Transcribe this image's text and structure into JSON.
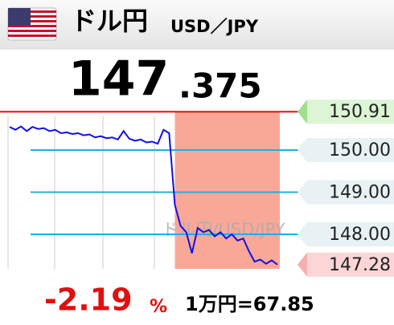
{
  "header": {
    "title": "ドル円",
    "pair": "USD／JPY"
  },
  "price": {
    "integer": "147",
    "decimal": ".375"
  },
  "change": {
    "value": "-2.19",
    "unit": "%"
  },
  "conversion": "1万円=67.85",
  "chart_data": {
    "type": "line",
    "watermark": "ドル円/USD/JPY",
    "series": [
      {
        "color": "#1010e0",
        "values": [
          150.55,
          150.48,
          150.56,
          150.45,
          150.55,
          150.5,
          150.52,
          150.45,
          150.48,
          150.4,
          150.42,
          150.38,
          150.4,
          150.35,
          150.37,
          150.3,
          150.33,
          150.28,
          150.3,
          150.25,
          150.45,
          150.27,
          150.22,
          150.25,
          150.18,
          150.2,
          150.15,
          150.48,
          150.4,
          148.7,
          148.2,
          148.05,
          147.55,
          148.15,
          148.05,
          148.1,
          147.95,
          148.05,
          147.9,
          148.0,
          147.85,
          147.9,
          147.6,
          147.35,
          147.4,
          147.3,
          147.38,
          147.28
        ]
      }
    ],
    "ylim": [
      147.18,
      150.99
    ],
    "yticks": [
      {
        "value": 148,
        "label": "148.00"
      },
      {
        "value": 149,
        "label": "149.00"
      },
      {
        "value": 150,
        "label": "150.00"
      }
    ],
    "reference": 150.91,
    "reference_color": "#e01010",
    "last": 147.28,
    "grid_color": "#1ab0e0"
  }
}
